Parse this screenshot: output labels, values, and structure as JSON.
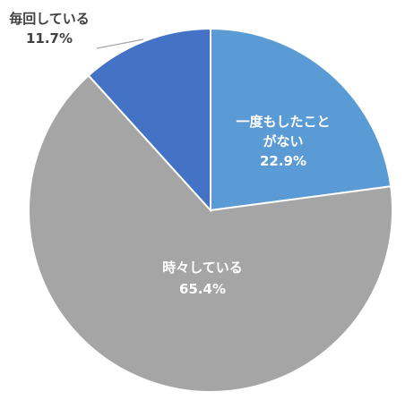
{
  "chart_data": {
    "type": "pie",
    "title": "",
    "start_angle_deg": 0,
    "direction": "clockwise",
    "legend": "none",
    "slices": [
      {
        "name": "一度もしたことがない",
        "name_lines": [
          "一度もしたこと",
          "がない"
        ],
        "value": 22.9,
        "value_label": "22.9%",
        "color": "#5B9BD5"
      },
      {
        "name": "時々している",
        "name_lines": [
          "時々している"
        ],
        "value": 65.4,
        "value_label": "65.4%",
        "color": "#A5A5A5"
      },
      {
        "name": "毎回している",
        "name_lines": [
          "毎回している"
        ],
        "value": 11.7,
        "value_label": "11.7%",
        "color": "#4472C4"
      }
    ]
  }
}
